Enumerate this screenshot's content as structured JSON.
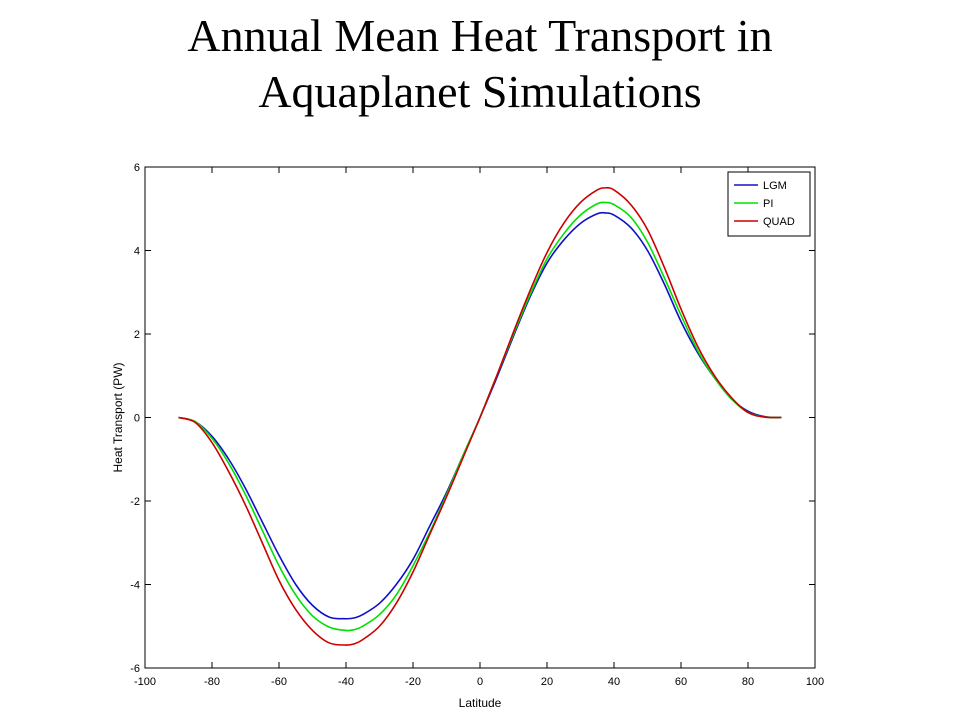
{
  "title_lines": [
    "Annual Mean Heat Transport in",
    "Aquaplanet Simulations"
  ],
  "chart_data": {
    "type": "line",
    "title": "Annual Mean Heat Transport in Aquaplanet Simulations",
    "xlabel": "Latitude",
    "ylabel": "Heat Transport (PW)",
    "xlim": [
      -100,
      100
    ],
    "ylim": [
      -6,
      6
    ],
    "xticks": [
      -100,
      -80,
      -60,
      -40,
      -20,
      0,
      20,
      40,
      60,
      80,
      100
    ],
    "yticks": [
      -6,
      -4,
      -2,
      0,
      2,
      4,
      6
    ],
    "xtick_labels": [
      "-100",
      "-80",
      "-60",
      "-40",
      "-20",
      "0",
      "20",
      "40",
      "60",
      "80",
      "100"
    ],
    "ytick_labels": [
      "-6",
      "-4",
      "-2",
      "0",
      "2",
      "4",
      "6"
    ],
    "grid": false,
    "legend_position": "top-right",
    "x": [
      -90,
      -85,
      -80,
      -75,
      -70,
      -65,
      -60,
      -55,
      -50,
      -45,
      -40,
      -37.5,
      -35,
      -30,
      -25,
      -20,
      -15,
      -10,
      -5,
      0,
      5,
      10,
      15,
      20,
      25,
      30,
      35,
      37.5,
      40,
      45,
      50,
      55,
      60,
      65,
      70,
      75,
      80,
      85,
      90
    ],
    "series": [
      {
        "name": "LGM",
        "color": "#1010c8",
        "values": [
          0,
          -0.1,
          -0.45,
          -1.0,
          -1.7,
          -2.5,
          -3.3,
          -4.0,
          -4.5,
          -4.78,
          -4.82,
          -4.8,
          -4.72,
          -4.45,
          -4.0,
          -3.4,
          -2.6,
          -1.8,
          -0.9,
          0,
          0.95,
          1.95,
          2.9,
          3.7,
          4.25,
          4.65,
          4.88,
          4.9,
          4.85,
          4.55,
          4.0,
          3.2,
          2.3,
          1.55,
          0.95,
          0.45,
          0.15,
          0.02,
          0
        ]
      },
      {
        "name": "PI",
        "color": "#00e000",
        "values": [
          0,
          -0.1,
          -0.5,
          -1.1,
          -1.85,
          -2.7,
          -3.55,
          -4.25,
          -4.75,
          -5.02,
          -5.1,
          -5.08,
          -5.0,
          -4.72,
          -4.25,
          -3.55,
          -2.75,
          -1.85,
          -0.9,
          0,
          1.0,
          2.0,
          2.95,
          3.8,
          4.4,
          4.85,
          5.12,
          5.15,
          5.1,
          4.8,
          4.2,
          3.35,
          2.45,
          1.6,
          0.95,
          0.45,
          0.12,
          0.01,
          0
        ]
      },
      {
        "name": "QUAD",
        "color": "#cc0000",
        "values": [
          0,
          -0.12,
          -0.6,
          -1.3,
          -2.1,
          -3.0,
          -3.9,
          -4.6,
          -5.1,
          -5.4,
          -5.45,
          -5.42,
          -5.32,
          -5.0,
          -4.45,
          -3.7,
          -2.8,
          -1.9,
          -0.95,
          0,
          1.0,
          2.05,
          3.05,
          3.95,
          4.65,
          5.15,
          5.45,
          5.5,
          5.45,
          5.1,
          4.5,
          3.6,
          2.6,
          1.7,
          1.0,
          0.48,
          0.12,
          0.01,
          0
        ]
      }
    ]
  }
}
